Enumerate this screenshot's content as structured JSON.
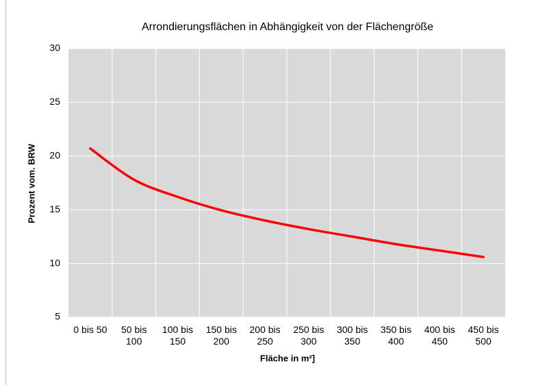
{
  "chart_data": {
    "type": "line",
    "title": "Arrondierungsflächen in Abhängigkeit von der Flächengröße",
    "xlabel": "Fläche in m²]",
    "ylabel": "Prozent  vom. BRW",
    "categories": [
      "0 bis 50",
      "50 bis 100",
      "100 bis 150",
      "150 bis 200",
      "200 bis 250",
      "250 bis 300",
      "300 bis 350",
      "350 bis 400",
      "400 bis 450",
      "450 bis 500"
    ],
    "values": [
      20.7,
      17.8,
      16.2,
      14.95,
      14.0,
      13.2,
      12.5,
      11.8,
      11.2,
      10.6
    ],
    "color": "#ff0000",
    "ylim": [
      5,
      30
    ],
    "yticks": [
      5,
      10,
      15,
      20,
      25,
      30
    ],
    "grid": true
  }
}
